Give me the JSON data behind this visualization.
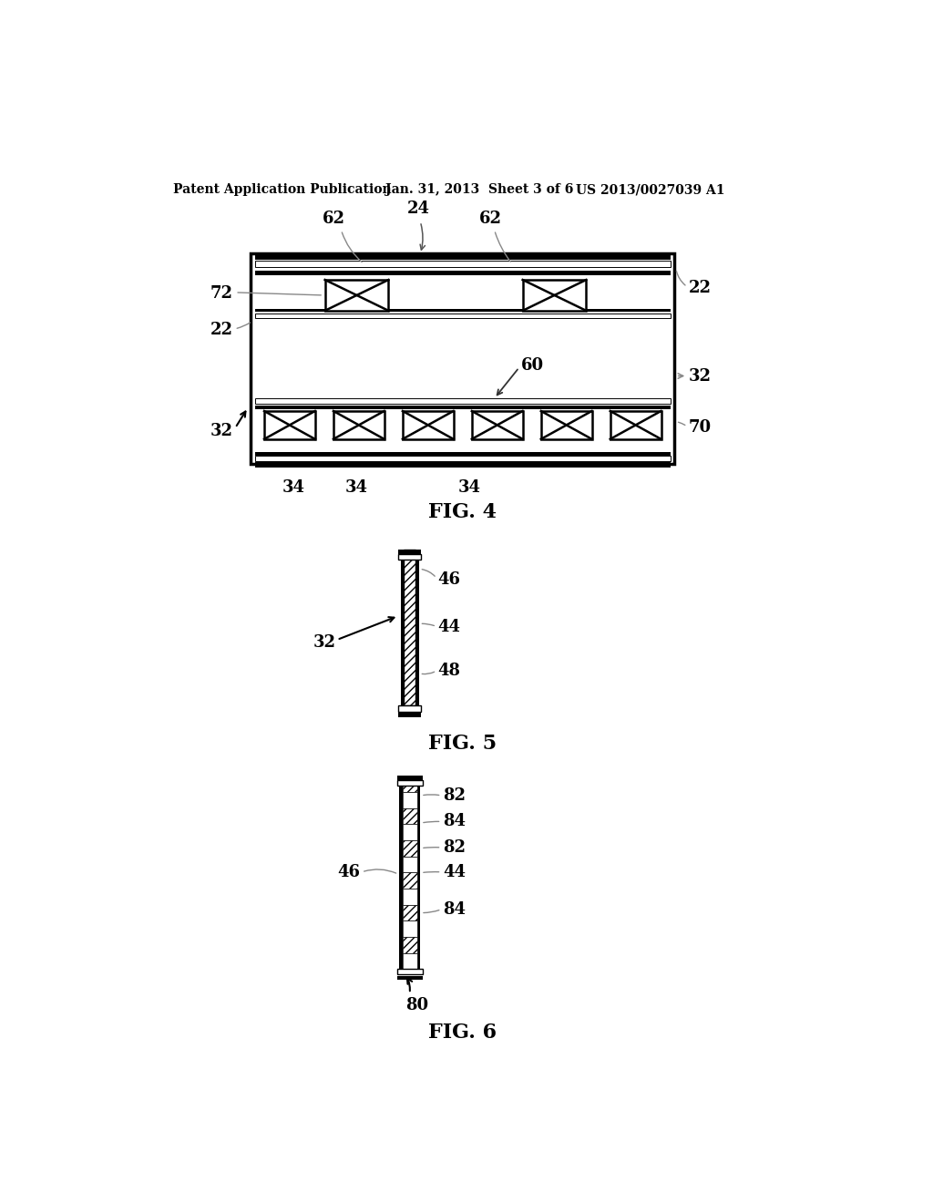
{
  "bg_color": "#ffffff",
  "header_left": "Patent Application Publication",
  "header_mid": "Jan. 31, 2013  Sheet 3 of 6",
  "header_right": "US 2013/0027039 A1"
}
